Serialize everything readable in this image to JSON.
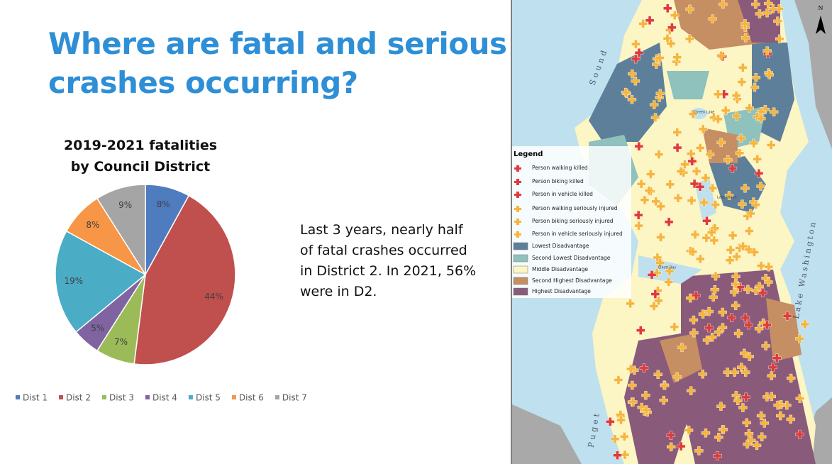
{
  "slide": {
    "title": [
      "Where are fatal and serious",
      "crashes occurring?"
    ],
    "note": "Last 3 years, nearly half of fatal crashes occurred in District 2. In 2021, 56% were in D2."
  },
  "chart_data": {
    "type": "pie",
    "title": "2019-2021 fatalities by Council District",
    "categories": [
      "Dist 1",
      "Dist 2",
      "Dist 3",
      "Dist 4",
      "Dist 5",
      "Dist 6",
      "Dist 7"
    ],
    "values": [
      8,
      44,
      7,
      5,
      19,
      8,
      9
    ],
    "value_labels": [
      "8%",
      "44%",
      "7%",
      "5%",
      "19%",
      "8%",
      "9%"
    ],
    "colors": [
      "#4f7bbf",
      "#c0504d",
      "#9bbb59",
      "#8064a2",
      "#4bacc6",
      "#f79646",
      "#a5a5a5"
    ],
    "legend": "bottom"
  },
  "map": {
    "legend_title": "Legend",
    "legend_items": [
      "Person walking killed",
      "Person biking killed",
      "Person in vehicle killed",
      "Person walking seriously injured",
      "Person biking seriously injured",
      "Person in vehicle seriously injured",
      "Lowest Disadvantage",
      "Second Lowest Disadvantage",
      "Middle Disadvantage",
      "Second Highest Disadvantage",
      "Highest Disadvantage"
    ],
    "north": "N",
    "labels": [
      "Sound",
      "Lake Washington",
      "Puget",
      "Elliott Bay",
      "Lake Union",
      "Green Lake"
    ]
  }
}
